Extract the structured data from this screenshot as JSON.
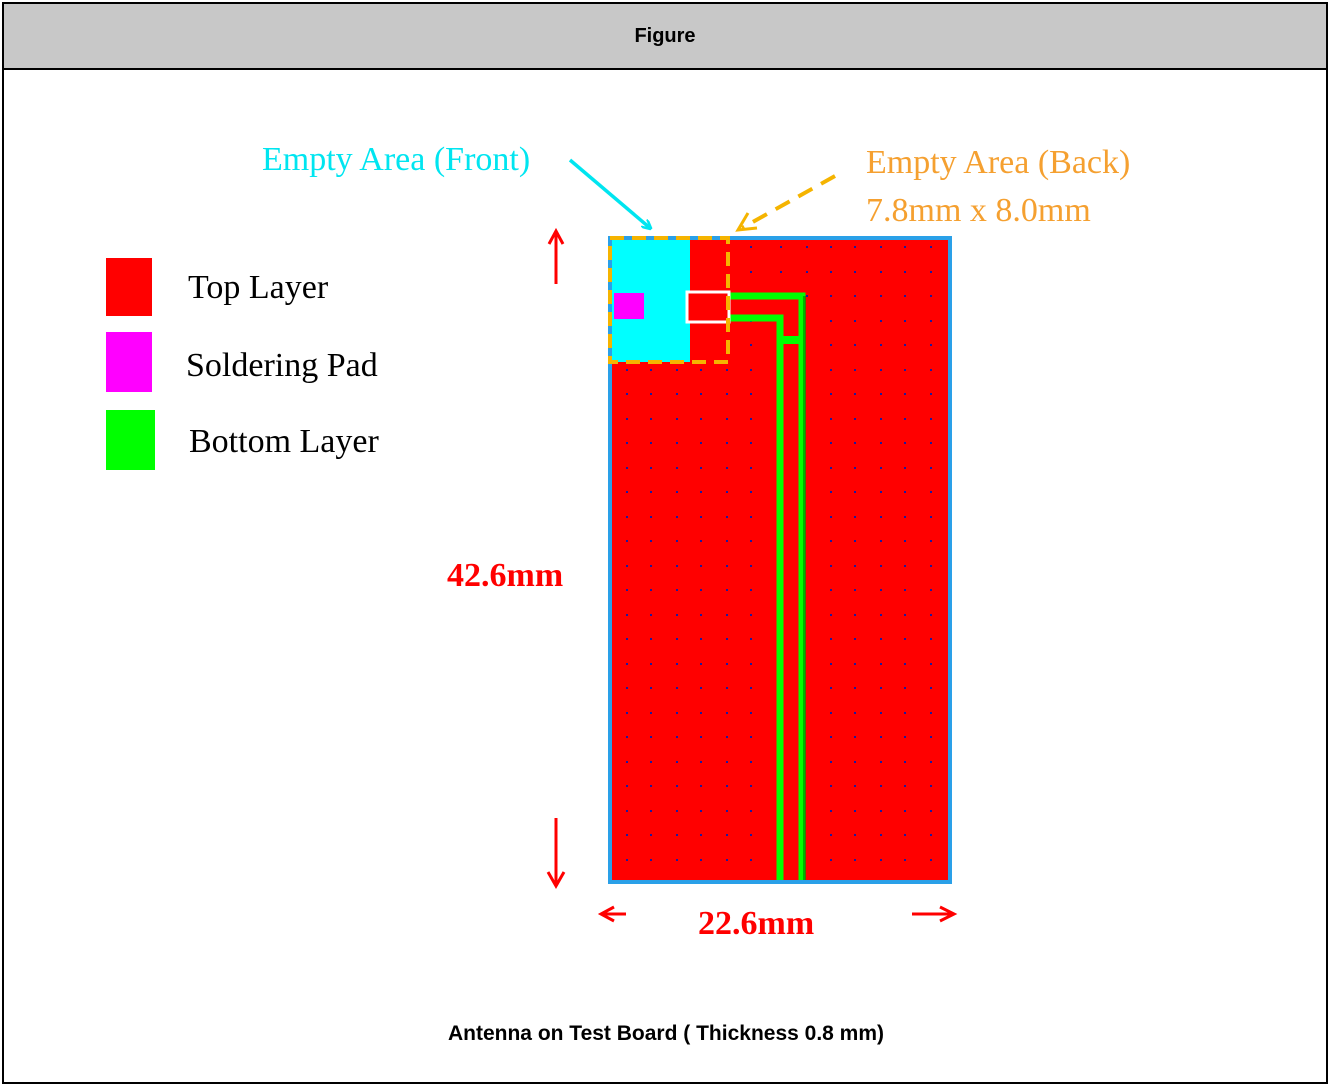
{
  "header": {
    "title": "Figure"
  },
  "caption": "Antenna on Test Board ( Thickness 0.8 mm)",
  "legend": [
    {
      "label": "Top Layer",
      "color": "#ff0000"
    },
    {
      "label": "Soldering Pad",
      "color": "#ff00ff"
    },
    {
      "label": "Bottom Layer",
      "color": "#00ff00"
    }
  ],
  "annotations": {
    "front_label": "Empty Area (Front)",
    "back_label_line1": "Empty Area (Back)",
    "back_label_line2": "7.8mm x 8.0mm",
    "height_label": "42.6mm",
    "width_label": "22.6mm"
  },
  "colors": {
    "top_layer": "#ff0000",
    "bottom_layer": "#00ff00",
    "soldering_pad": "#ff00ff",
    "empty_front": "#00ffff",
    "empty_back": "#f5a623",
    "board_border": "#2aa0e8",
    "dimension": "#ff0000",
    "via": "#1a1aa0"
  }
}
